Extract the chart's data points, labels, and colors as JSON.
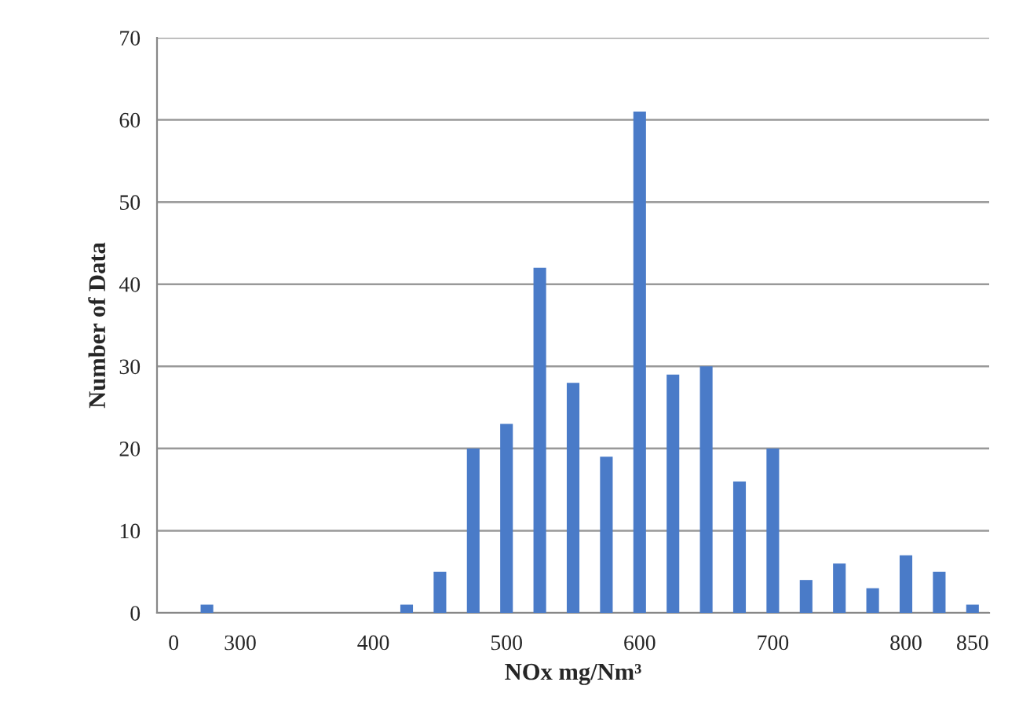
{
  "chart_data": {
    "type": "bar",
    "xlabel": "NOx mg/Nm³",
    "ylabel": "Number of Data",
    "categories": [
      "0",
      null,
      "300",
      null,
      null,
      null,
      "400",
      null,
      null,
      null,
      "500",
      null,
      null,
      null,
      "600",
      null,
      null,
      null,
      "700",
      null,
      null,
      null,
      "800",
      null,
      "850"
    ],
    "values": [
      0,
      1,
      0,
      0,
      0,
      0,
      0,
      1,
      5,
      20,
      23,
      42,
      28,
      19,
      61,
      29,
      30,
      16,
      20,
      4,
      6,
      3,
      7,
      5,
      1
    ],
    "color": "#4a7bc8",
    "ylim": [
      0,
      70
    ],
    "yticks": [
      0,
      10,
      20,
      30,
      40,
      50,
      60,
      70
    ],
    "grid": "y",
    "legend": false
  }
}
